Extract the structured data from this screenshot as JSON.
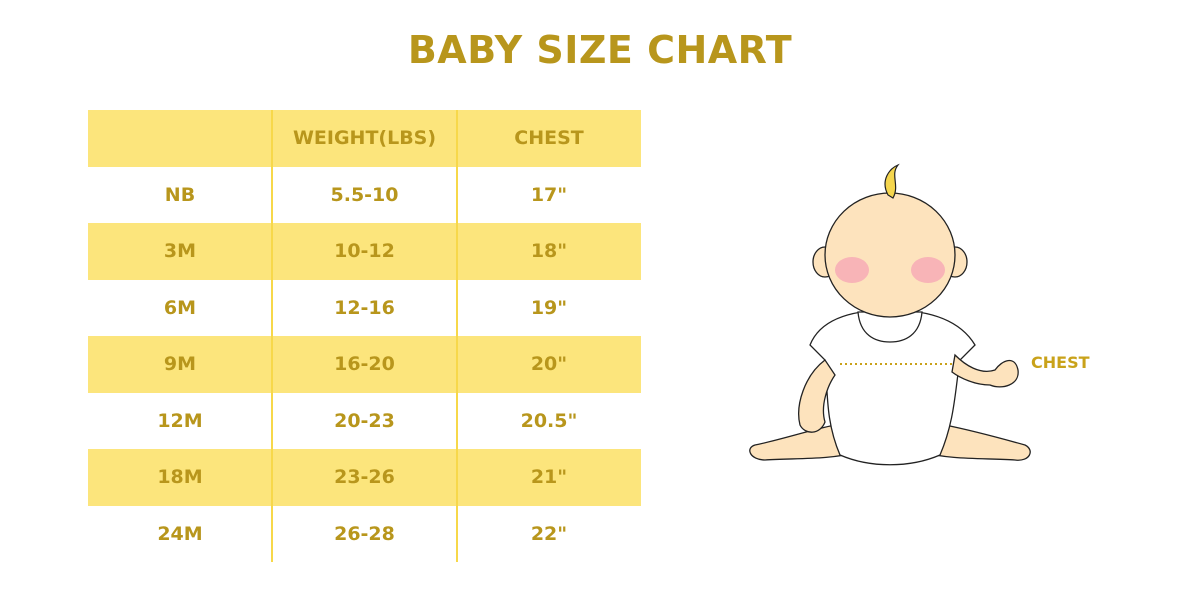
{
  "title": "BABY SIZE CHART",
  "table": {
    "headers": [
      "",
      "WEIGHT(LBS)",
      "CHEST"
    ],
    "rows": [
      [
        "NB",
        "5.5-10",
        "17\""
      ],
      [
        "3M",
        "10-12",
        "18\""
      ],
      [
        "6M",
        "12-16",
        "19\""
      ],
      [
        "9M",
        "16-20",
        "20\""
      ],
      [
        "12M",
        "20-23",
        "20.5\""
      ],
      [
        "18M",
        "23-26",
        "21\""
      ],
      [
        "24M",
        "26-28",
        "22\""
      ]
    ]
  },
  "illustration": {
    "chest_label": "CHEST"
  },
  "colors": {
    "text": "#b8961c",
    "band": "#fce57c",
    "divider": "#f7d84a"
  }
}
